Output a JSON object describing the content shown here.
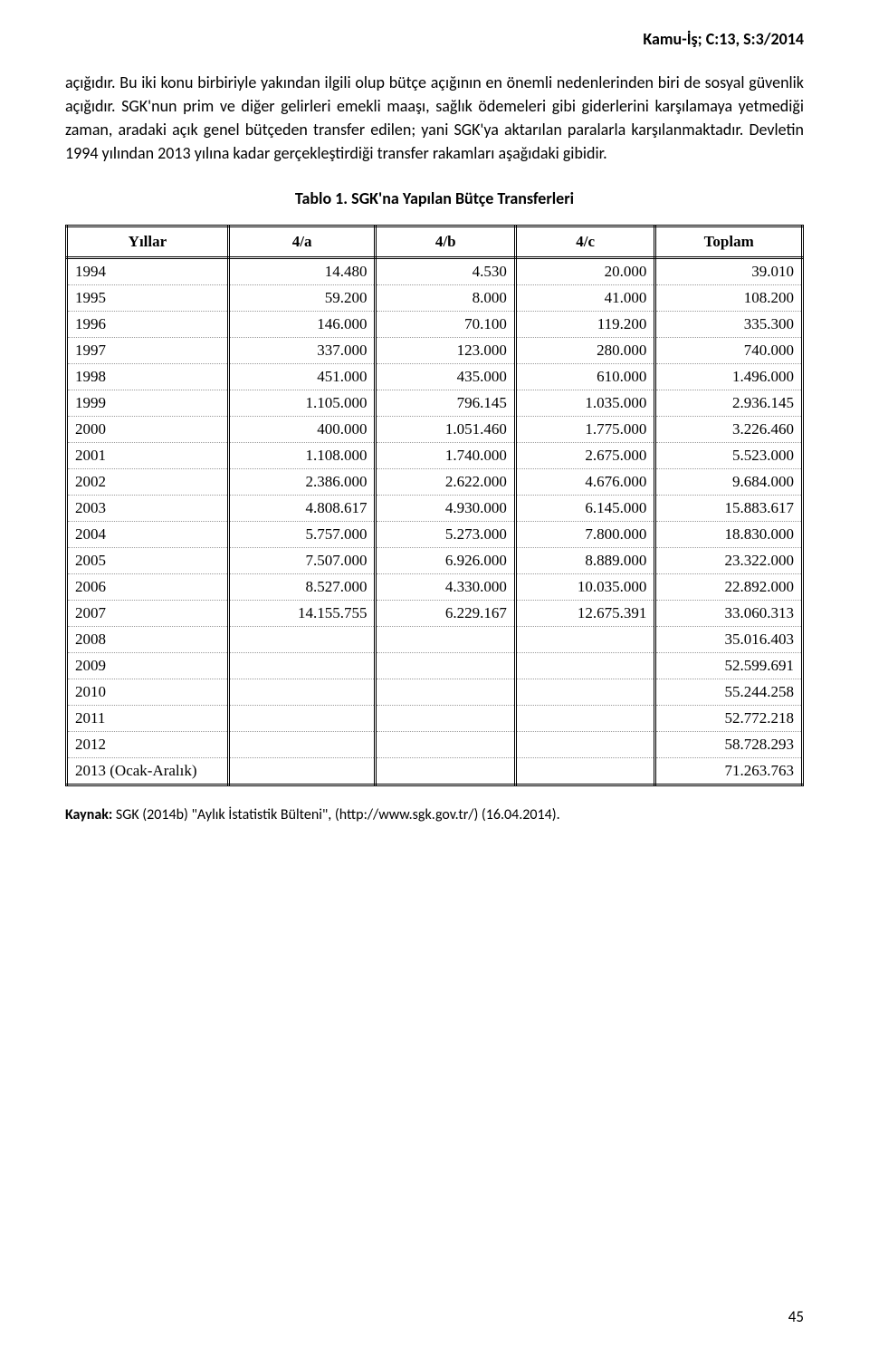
{
  "header_right": "Kamu-İş; C:13, S:3/2014",
  "paragraph": "açığıdır. Bu iki konu birbiriyle yakından ilgili olup bütçe açığının en önemli nedenlerinden biri de sosyal güvenlik açığıdır. SGK'nun prim ve diğer gelirleri emekli maaşı, sağlık ödemeleri gibi giderlerini karşılamaya yetmediği zaman, aradaki açık genel bütçeden transfer edilen; yani SGK'ya aktarılan paralarla karşılanmaktadır. Devletin 1994 yılından 2013 yılına kadar gerçekleştirdiği transfer rakamları aşağıdaki gibidir.",
  "table_title": "Tablo 1. SGK'na Yapılan Bütçe Transferleri",
  "table": {
    "columns": [
      "Yıllar",
      "4/a",
      "4/b",
      "4/c",
      "Toplam"
    ],
    "rows": [
      {
        "year": "1994",
        "a": "14.480",
        "b": "4.530",
        "c": "20.000",
        "t": "39.010"
      },
      {
        "year": "1995",
        "a": "59.200",
        "b": "8.000",
        "c": "41.000",
        "t": "108.200"
      },
      {
        "year": "1996",
        "a": "146.000",
        "b": "70.100",
        "c": "119.200",
        "t": "335.300"
      },
      {
        "year": "1997",
        "a": "337.000",
        "b": "123.000",
        "c": "280.000",
        "t": "740.000"
      },
      {
        "year": "1998",
        "a": "451.000",
        "b": "435.000",
        "c": "610.000",
        "t": "1.496.000"
      },
      {
        "year": "1999",
        "a": "1.105.000",
        "b": "796.145",
        "c": "1.035.000",
        "t": "2.936.145"
      },
      {
        "year": "2000",
        "a": "400.000",
        "b": "1.051.460",
        "c": "1.775.000",
        "t": "3.226.460"
      },
      {
        "year": "2001",
        "a": "1.108.000",
        "b": "1.740.000",
        "c": "2.675.000",
        "t": "5.523.000"
      },
      {
        "year": "2002",
        "a": "2.386.000",
        "b": "2.622.000",
        "c": "4.676.000",
        "t": "9.684.000"
      },
      {
        "year": "2003",
        "a": "4.808.617",
        "b": "4.930.000",
        "c": "6.145.000",
        "t": "15.883.617"
      },
      {
        "year": "2004",
        "a": "5.757.000",
        "b": "5.273.000",
        "c": "7.800.000",
        "t": "18.830.000"
      },
      {
        "year": "2005",
        "a": "7.507.000",
        "b": "6.926.000",
        "c": "8.889.000",
        "t": "23.322.000"
      },
      {
        "year": "2006",
        "a": "8.527.000",
        "b": "4.330.000",
        "c": "10.035.000",
        "t": "22.892.000"
      },
      {
        "year": "2007",
        "a": "14.155.755",
        "b": "6.229.167",
        "c": "12.675.391",
        "t": "33.060.313"
      },
      {
        "year": "2008",
        "a": "",
        "b": "",
        "c": "",
        "t": "35.016.403"
      },
      {
        "year": "2009",
        "a": "",
        "b": "",
        "c": "",
        "t": "52.599.691"
      },
      {
        "year": "2010",
        "a": "",
        "b": "",
        "c": "",
        "t": "55.244.258"
      },
      {
        "year": "2011",
        "a": "",
        "b": "",
        "c": "",
        "t": "52.772.218"
      },
      {
        "year": "2012",
        "a": "",
        "b": "",
        "c": "",
        "t": "58.728.293"
      },
      {
        "year": "2013 (Ocak-Aralık)",
        "a": "",
        "b": "",
        "c": "",
        "t": "71.263.763"
      }
    ]
  },
  "source_label": "Kaynak:",
  "source_text": " SGK (2014b) \"Aylık İstatistik Bülteni\", (http://www.sgk.gov.tr/) (16.04.2014).",
  "page_number": "45"
}
